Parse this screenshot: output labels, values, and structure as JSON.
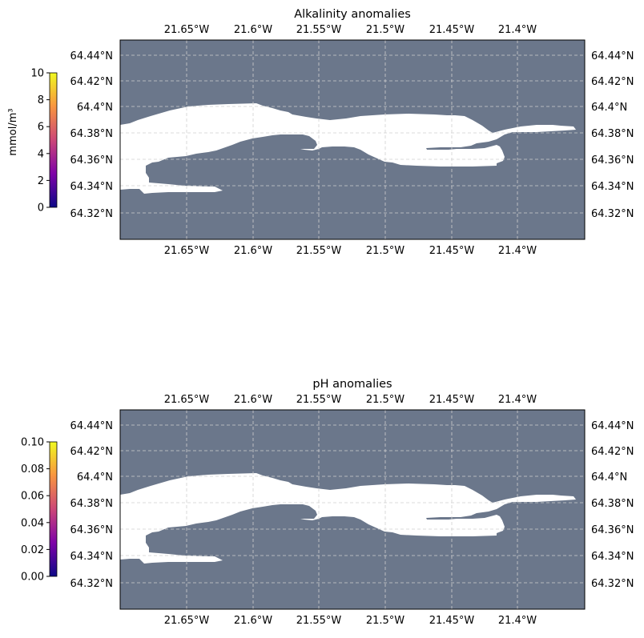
{
  "colors": {
    "land": "#6b778b",
    "water": "#ffffff",
    "grid": "#d0d0d0",
    "colormap": [
      "#0d0887",
      "#7e03a8",
      "#cc4778",
      "#f89540",
      "#f0f921"
    ]
  },
  "panels": [
    {
      "title": "Alkalinity anomalies",
      "colorbar": {
        "label": "mmol/m³",
        "min": 0,
        "max": 10,
        "ticks": [
          "0",
          "2",
          "4",
          "6",
          "8",
          "10"
        ]
      },
      "lon_ticks": [
        "21.65°W",
        "21.6°W",
        "21.55°W",
        "21.5°W",
        "21.45°W",
        "21.4°W"
      ],
      "lat_ticks": [
        "64.44°N",
        "64.42°N",
        "64.4°N",
        "64.38°N",
        "64.36°N",
        "64.34°N",
        "64.32°N"
      ]
    },
    {
      "title": "pH anomalies",
      "colorbar": {
        "label": "",
        "min": 0,
        "max": 0.1,
        "ticks": [
          "0.00",
          "0.02",
          "0.04",
          "0.06",
          "0.08",
          "0.10"
        ]
      },
      "lon_ticks": [
        "21.65°W",
        "21.6°W",
        "21.55°W",
        "21.5°W",
        "21.45°W",
        "21.4°W"
      ],
      "lat_ticks": [
        "64.44°N",
        "64.42°N",
        "64.4°N",
        "64.38°N",
        "64.36°N",
        "64.34°N",
        "64.32°N"
      ]
    }
  ]
}
